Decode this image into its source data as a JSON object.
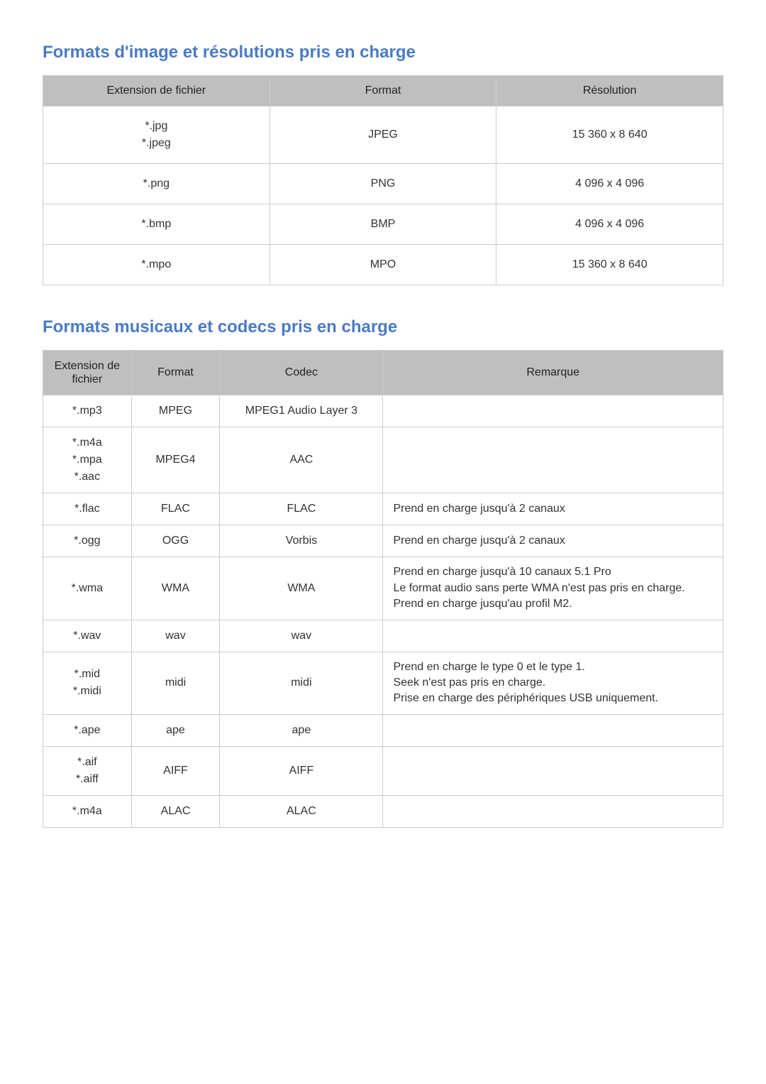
{
  "colors": {
    "heading": "#4a7bc4",
    "header_bg": "#bfbfbf",
    "border": "#cccccc",
    "text": "#333333",
    "background": "#ffffff"
  },
  "typography": {
    "heading_fontsize_pt": 18,
    "body_fontsize_pt": 12
  },
  "image_section": {
    "title": "Formats d'image et résolutions pris en charge",
    "columns": [
      "Extension de fichier",
      "Format",
      "Résolution"
    ],
    "rows": [
      {
        "ext": [
          "*.jpg",
          "*.jpeg"
        ],
        "format": "JPEG",
        "resolution": "15 360 x 8 640"
      },
      {
        "ext": [
          "*.png"
        ],
        "format": "PNG",
        "resolution": "4 096 x 4 096"
      },
      {
        "ext": [
          "*.bmp"
        ],
        "format": "BMP",
        "resolution": "4 096 x 4 096"
      },
      {
        "ext": [
          "*.mpo"
        ],
        "format": "MPO",
        "resolution": "15 360 x 8 640"
      }
    ]
  },
  "music_section": {
    "title": "Formats musicaux et codecs pris en charge",
    "columns": [
      "Extension de fichier",
      "Format",
      "Codec",
      "Remarque"
    ],
    "columns_header_lines": {
      "0": [
        "Extension de",
        "fichier"
      ]
    },
    "rows": [
      {
        "ext": [
          "*.mp3"
        ],
        "format": "MPEG",
        "codec": "MPEG1 Audio Layer 3",
        "remark": []
      },
      {
        "ext": [
          "*.m4a",
          "*.mpa",
          "*.aac"
        ],
        "format": "MPEG4",
        "codec": "AAC",
        "remark": []
      },
      {
        "ext": [
          "*.flac"
        ],
        "format": "FLAC",
        "codec": "FLAC",
        "remark": [
          "Prend en charge jusqu'à 2 canaux"
        ]
      },
      {
        "ext": [
          "*.ogg"
        ],
        "format": "OGG",
        "codec": "Vorbis",
        "remark": [
          "Prend en charge jusqu'à 2 canaux"
        ]
      },
      {
        "ext": [
          "*.wma"
        ],
        "format": "WMA",
        "codec": "WMA",
        "remark": [
          "Prend en charge jusqu'à 10 canaux 5.1 Pro",
          "Le format audio sans perte WMA n'est pas pris en charge.",
          "Prend en charge jusqu'au profil M2."
        ]
      },
      {
        "ext": [
          "*.wav"
        ],
        "format": "wav",
        "codec": "wav",
        "remark": []
      },
      {
        "ext": [
          "*.mid",
          "*.midi"
        ],
        "format": "midi",
        "codec": "midi",
        "remark": [
          "Prend en charge le type 0 et le type 1.",
          "Seek n'est pas pris en charge.",
          "Prise en charge des périphériques USB uniquement."
        ]
      },
      {
        "ext": [
          "*.ape"
        ],
        "format": "ape",
        "codec": "ape",
        "remark": []
      },
      {
        "ext": [
          "*.aif",
          "*.aiff"
        ],
        "format": "AIFF",
        "codec": "AIFF",
        "remark": []
      },
      {
        "ext": [
          "*.m4a"
        ],
        "format": "ALAC",
        "codec": "ALAC",
        "remark": []
      }
    ]
  }
}
